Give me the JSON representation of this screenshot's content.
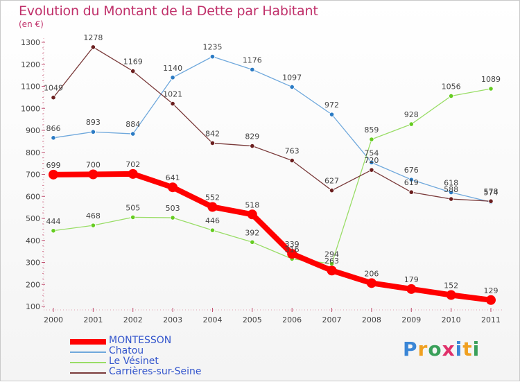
{
  "title": "Evolution du Montant de la Dette par Habitant",
  "unit": "(en €)",
  "logo": "Proxiti",
  "chart_data": {
    "type": "line",
    "title": "Evolution du Montant de la Dette par Habitant",
    "ylabel": "(en €)",
    "x": [
      "2000",
      "2001",
      "2002",
      "2003",
      "2004",
      "2005",
      "2006",
      "2007",
      "2008",
      "2009",
      "2010",
      "2011"
    ],
    "ylim": [
      100,
      1300
    ],
    "yticks": [
      100,
      200,
      300,
      400,
      500,
      600,
      700,
      800,
      900,
      1000,
      1100,
      1200,
      1300
    ],
    "grid": false,
    "legend_position": "bottom-left",
    "series": [
      {
        "name": "MONTESSON",
        "color": "#ff0000",
        "point_color": "#ff0000",
        "width": 8,
        "values": [
          699,
          700,
          702,
          641,
          552,
          518,
          339,
          263,
          206,
          179,
          152,
          129
        ]
      },
      {
        "name": "Chatou",
        "color": "#6fa8dc",
        "point_color": "#2b7bc4",
        "width": 1.3,
        "values": [
          866,
          893,
          884,
          1140,
          1235,
          1176,
          1097,
          972,
          754,
          676,
          618,
          574
        ]
      },
      {
        "name": "Le Vésinet",
        "color": "#99dd66",
        "point_color": "#66cc22",
        "width": 1.3,
        "values": [
          444,
          468,
          505,
          503,
          446,
          392,
          316,
          294,
          859,
          928,
          1056,
          1089
        ]
      },
      {
        "name": "Carrières-sur-Seine",
        "color": "#7a3a3a",
        "point_color": "#6b1f1f",
        "width": 1.3,
        "values": [
          1049,
          1278,
          1169,
          1021,
          842,
          829,
          763,
          627,
          720,
          619,
          588,
          578
        ]
      }
    ]
  }
}
